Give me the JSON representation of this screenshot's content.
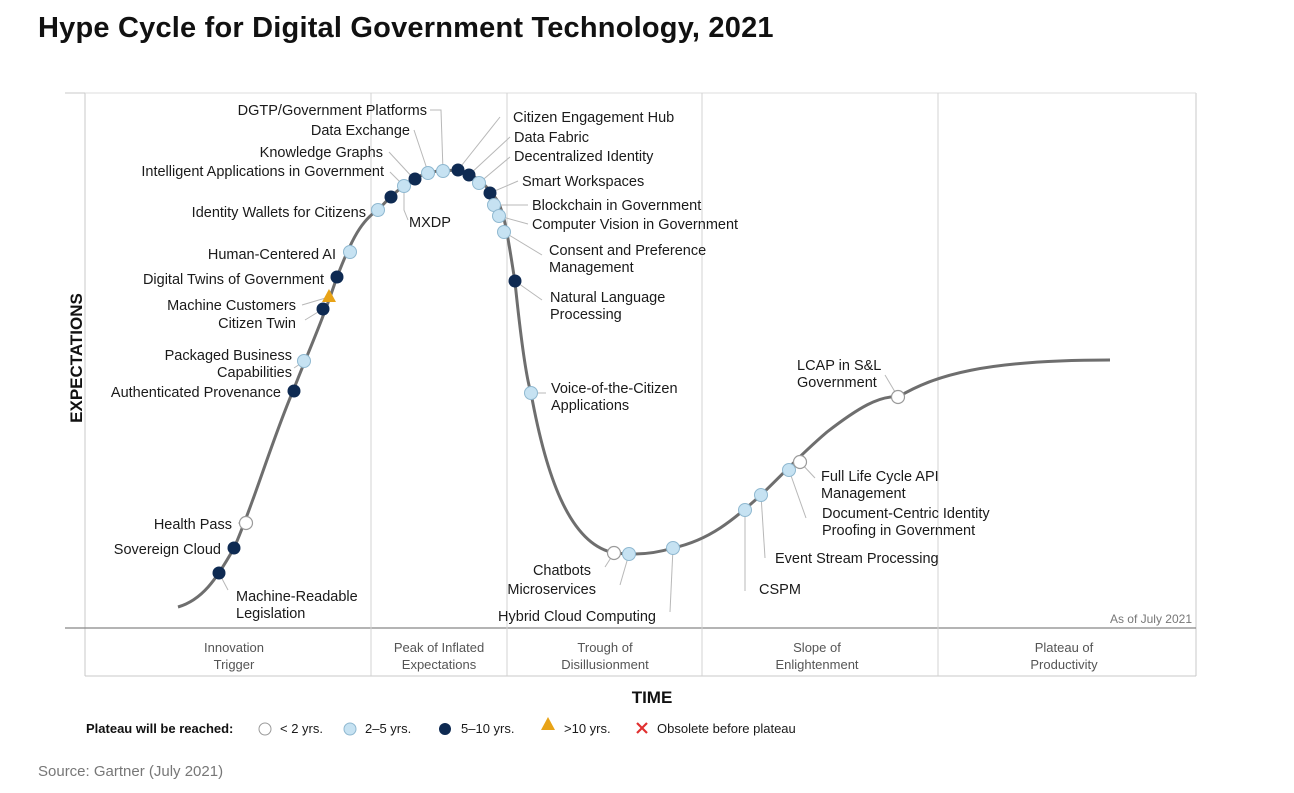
{
  "title": "Hype Cycle for Digital Government Technology, 2021",
  "source": "Source: Gartner (July 2021)",
  "chart": {
    "y_axis_label": "EXPECTATIONS",
    "x_axis_label": "TIME",
    "as_of": "As of July 2021",
    "phases": [
      {
        "line1": "Innovation",
        "line2": "Trigger"
      },
      {
        "line1": "Peak of Inflated",
        "line2": "Expectations"
      },
      {
        "line1": "Trough of",
        "line2": "Disillusionment"
      },
      {
        "line1": "Slope of",
        "line2": "Enlightenment"
      },
      {
        "line1": "Plateau of",
        "line2": "Productivity"
      }
    ]
  },
  "legend": {
    "title": "Plateau will be reached:",
    "items": [
      {
        "key": "lt2",
        "label": "< 2 yrs."
      },
      {
        "key": "2to5",
        "label": "2–5 yrs."
      },
      {
        "key": "5to10",
        "label": "5–10 yrs."
      },
      {
        "key": "gt10",
        "label": ">10 yrs."
      },
      {
        "key": "obsolete",
        "label": "Obsolete before plateau"
      }
    ]
  },
  "colors": {
    "lt2": "#ffffff",
    "2to5": "#c6e2f2",
    "5to10": "#0e2a52",
    "gt10": "#e8a317",
    "obsolete": "#e03030",
    "curve": "#6e6e6e",
    "grid": "#d0d0d0"
  },
  "technologies": [
    {
      "name": "Machine-Readable Legislation",
      "category": "5to10"
    },
    {
      "name": "Sovereign Cloud",
      "category": "5to10"
    },
    {
      "name": "Health Pass",
      "category": "lt2"
    },
    {
      "name": "Authenticated Provenance",
      "category": "5to10"
    },
    {
      "name": "Packaged Business Capabilities",
      "category": "2to5"
    },
    {
      "name": "Citizen Twin",
      "category": "5to10"
    },
    {
      "name": "Machine Customers",
      "category": "gt10"
    },
    {
      "name": "Digital Twins of Government",
      "category": "5to10"
    },
    {
      "name": "Human-Centered AI",
      "category": "2to5"
    },
    {
      "name": "Identity Wallets for Citizens",
      "category": "2to5"
    },
    {
      "name": "MXDP",
      "category": "5to10"
    },
    {
      "name": "Intelligent Applications in Government",
      "category": "2to5"
    },
    {
      "name": "Knowledge Graphs",
      "category": "5to10"
    },
    {
      "name": "Data Exchange",
      "category": "2to5"
    },
    {
      "name": "DGTP/Government Platforms",
      "category": "2to5"
    },
    {
      "name": "Citizen Engagement Hub",
      "category": "5to10"
    },
    {
      "name": "Data Fabric",
      "category": "5to10"
    },
    {
      "name": "Decentralized Identity",
      "category": "2to5"
    },
    {
      "name": "Smart Workspaces",
      "category": "5to10"
    },
    {
      "name": "Blockchain in Government",
      "category": "2to5"
    },
    {
      "name": "Computer Vision in Government",
      "category": "2to5"
    },
    {
      "name": "Consent and Preference Management",
      "category": "2to5"
    },
    {
      "name": "Natural Language Processing",
      "category": "5to10"
    },
    {
      "name": "Voice-of-the-Citizen Applications",
      "category": "2to5"
    },
    {
      "name": "Chatbots",
      "category": "lt2"
    },
    {
      "name": "Microservices",
      "category": "2to5"
    },
    {
      "name": "Hybrid Cloud Computing",
      "category": "2to5"
    },
    {
      "name": "CSPM",
      "category": "2to5"
    },
    {
      "name": "Event Stream Processing",
      "category": "2to5"
    },
    {
      "name": "Document-Centric Identity Proofing in Government",
      "category": "2to5"
    },
    {
      "name": "Full Life Cycle API Management",
      "category": "lt2"
    },
    {
      "name": "LCAP in S&L Government",
      "category": "lt2"
    }
  ]
}
